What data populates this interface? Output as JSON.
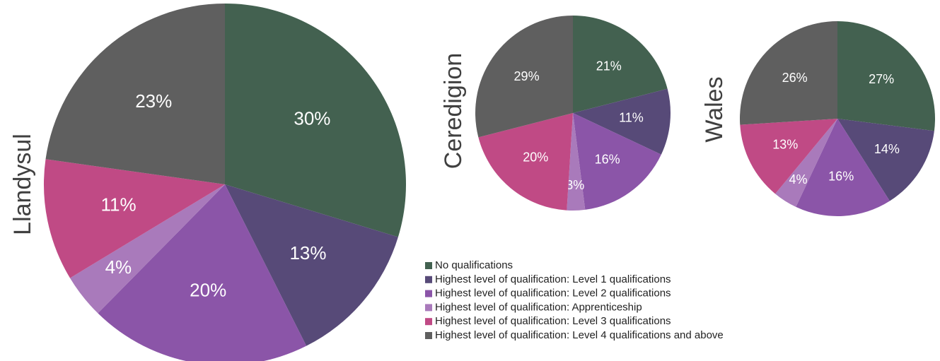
{
  "legend": {
    "categories": [
      "No qualifications",
      "Highest level of qualification: Level 1 qualifications",
      "Highest level of qualification: Level 2 qualifications",
      "Highest level of qualification: Apprenticeship",
      "Highest level of qualification: Level 3 qualifications",
      "Highest level of qualification: Level 4 qualifications and above"
    ]
  },
  "chart_data": [
    {
      "type": "pie",
      "title": "Llandysul",
      "values": [
        30,
        13,
        20,
        4,
        11,
        23
      ],
      "value_labels": [
        "30%",
        "13%",
        "20%",
        "4%",
        "11%",
        "23%"
      ],
      "colors": [
        "#436150",
        "#574a78",
        "#8b55a8",
        "#a97abb",
        "#c04a85",
        "#5f5f5f"
      ]
    },
    {
      "type": "pie",
      "title": "Ceredigion",
      "values": [
        21,
        11,
        16,
        3,
        20,
        29
      ],
      "value_labels": [
        "21%",
        "11%",
        "16%",
        "3%",
        "20%",
        "29%"
      ],
      "colors": [
        "#436150",
        "#574a78",
        "#8b55a8",
        "#a97abb",
        "#c04a85",
        "#5f5f5f"
      ]
    },
    {
      "type": "pie",
      "title": "Wales",
      "values": [
        27,
        14,
        16,
        4,
        13,
        26
      ],
      "value_labels": [
        "27%",
        "14%",
        "16%",
        "4%",
        "13%",
        "26%"
      ],
      "colors": [
        "#436150",
        "#574a78",
        "#8b55a8",
        "#a97abb",
        "#c04a85",
        "#5f5f5f"
      ]
    }
  ]
}
